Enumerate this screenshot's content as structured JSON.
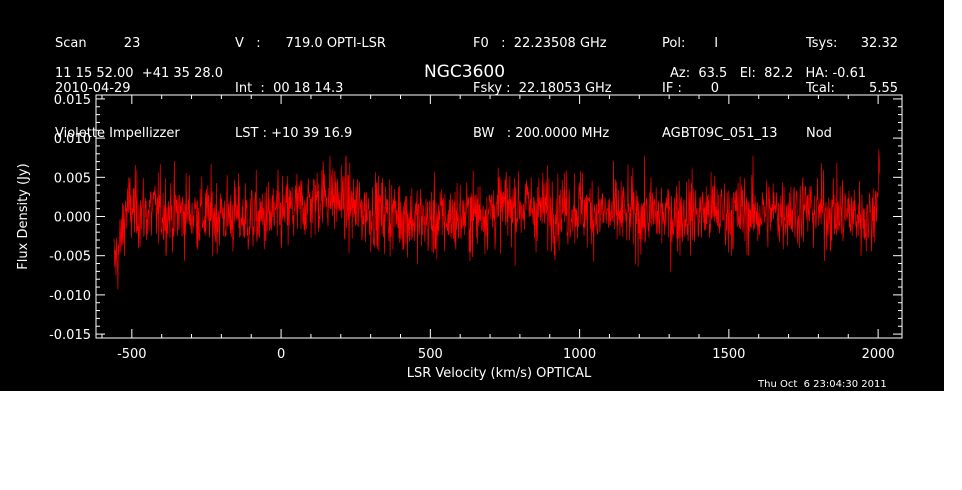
{
  "header": {
    "col1": [
      "Scan         23",
      "2010-04-29",
      "Violette Impellizzer"
    ],
    "col2": [
      "V   :      719.0 OPTI-LSR",
      "Int  :  00 18 14.3",
      "LST : +10 39 16.9"
    ],
    "col3": [
      "F0   :  22.23508 GHz",
      "Fsky :  22.18053 GHz",
      "BW   : 200.0000 MHz"
    ],
    "col4": [
      "Pol:       I",
      "IF :       0",
      "AGBT09C_051_13"
    ],
    "col5": [
      "Tsys:",
      "Tcal:",
      "Nod"
    ],
    "col6": [
      "32.32",
      "5.55",
      ""
    ],
    "coords": "11 15 52.00  +41 35 28.0",
    "source": "NGC3600",
    "azelha": "Az:  63.5   El:  82.2   HA: -0.61"
  },
  "footer": {
    "timestamp": "Thu Oct  6 23:04:30 2011"
  },
  "colors": {
    "background": "#000000",
    "axes": "#ffffff",
    "trace": "#ff0000"
  },
  "chart_data": {
    "type": "line",
    "xlabel": "LSR Velocity (km/s) OPTICAL",
    "ylabel": "Flux Density (Jy)",
    "xlim": [
      -620,
      2080
    ],
    "ylim": [
      -0.0155,
      0.0155
    ],
    "xticks": [
      -500,
      0,
      500,
      1000,
      1500,
      2000
    ],
    "xtick_labels": [
      "-500",
      "0",
      "500",
      "1000",
      "1500",
      "2000"
    ],
    "yticks": [
      -0.015,
      -0.01,
      -0.005,
      0.0,
      0.005,
      0.01,
      0.015
    ],
    "ytick_labels": [
      "-0.015",
      "-0.010",
      "-0.005",
      "0.000",
      "0.005",
      "0.010",
      "0.015"
    ],
    "grid": false,
    "series": [
      {
        "x": [
          -560,
          -540,
          -520,
          -500,
          -450,
          -400,
          -350,
          -300,
          -250,
          -200,
          -150,
          -100,
          -50,
          0,
          50,
          100,
          150,
          200,
          250,
          300,
          350,
          400,
          450,
          500,
          550,
          600,
          650,
          700,
          750,
          800,
          850,
          900,
          950,
          1000,
          1050,
          1100,
          1150,
          1200,
          1250,
          1300,
          1350,
          1400,
          1450,
          1500,
          1550,
          1600,
          1650,
          1700,
          1750,
          1800,
          1850,
          1900,
          1950,
          1980,
          2000,
          2005
        ],
        "y": [
          -0.006,
          -0.004,
          0.001,
          0.0008,
          0.0005,
          0.0007,
          0.0004,
          0.0006,
          0.0,
          0.0003,
          0.0,
          -0.0003,
          -0.0001,
          0.0002,
          0.001,
          0.0018,
          0.003,
          0.002,
          0.001,
          0.0006,
          0.0004,
          0.0002,
          -0.0004,
          -0.0006,
          -0.0003,
          0.0,
          0.0003,
          0.0008,
          0.0012,
          0.0014,
          0.001,
          0.0009,
          0.0011,
          0.0012,
          0.0006,
          0.0002,
          0.0003,
          0.0001,
          0.0002,
          0.0001,
          0.0005,
          0.0004,
          0.0007,
          0.0003,
          0.0005,
          0.0004,
          0.0006,
          0.0008,
          0.001,
          0.0007,
          0.0005,
          0.0003,
          0.0,
          -0.0005,
          0.004,
          0.009
        ],
        "noise_rms": 0.003
      }
    ]
  }
}
